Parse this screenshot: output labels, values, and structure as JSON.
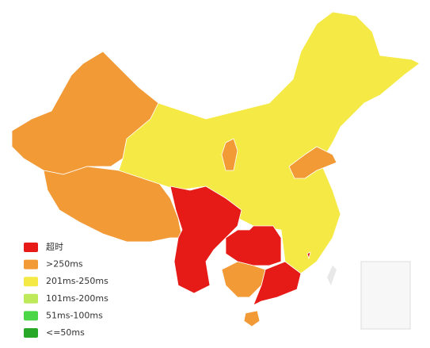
{
  "legend": {
    "items": [
      {
        "label": "超时",
        "color": "#e61a17"
      },
      {
        "label": ">250ms",
        "color": "#f29a36"
      },
      {
        "label": "201ms-250ms",
        "color": "#f5ea45"
      },
      {
        "label": "101ms-200ms",
        "color": "#bde95a"
      },
      {
        "label": "51ms-100ms",
        "color": "#4bd648"
      },
      {
        "label": "<=50ms",
        "color": "#27a827"
      }
    ]
  }
}
